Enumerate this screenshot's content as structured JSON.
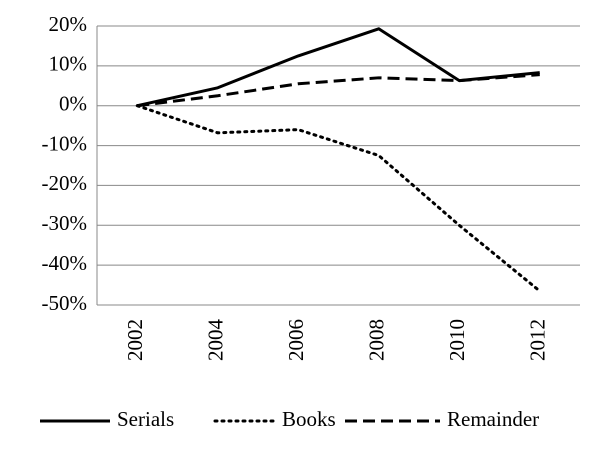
{
  "chart_data": {
    "type": "line",
    "categories": [
      "2002",
      "2004",
      "2006",
      "2008",
      "2010",
      "2012"
    ],
    "series": [
      {
        "name": "Serials",
        "color": "#000000",
        "dash": "solid",
        "values": [
          0,
          4.5,
          12.5,
          19.3,
          6.3,
          8.3
        ]
      },
      {
        "name": "Books",
        "color": "#000000",
        "dash": "dotted",
        "values": [
          0,
          -6.8,
          -6,
          -12.5,
          -30,
          -46.5
        ]
      },
      {
        "name": "Remainder",
        "color": "#000000",
        "dash": "dashed",
        "values": [
          0,
          2.5,
          5.5,
          7,
          6.3,
          7.8
        ]
      }
    ],
    "ylim": [
      -50,
      20
    ],
    "yticks": [
      {
        "value": -50,
        "label": "-50%"
      },
      {
        "value": -40,
        "label": "-40%"
      },
      {
        "value": -30,
        "label": "-30%"
      },
      {
        "value": -20,
        "label": "-20%"
      },
      {
        "value": -10,
        "label": "-10%"
      },
      {
        "value": 0,
        "label": "0%"
      },
      {
        "value": 10,
        "label": "10%"
      },
      {
        "value": 20,
        "label": "20%"
      }
    ],
    "grid": true,
    "legend": "bottom"
  }
}
